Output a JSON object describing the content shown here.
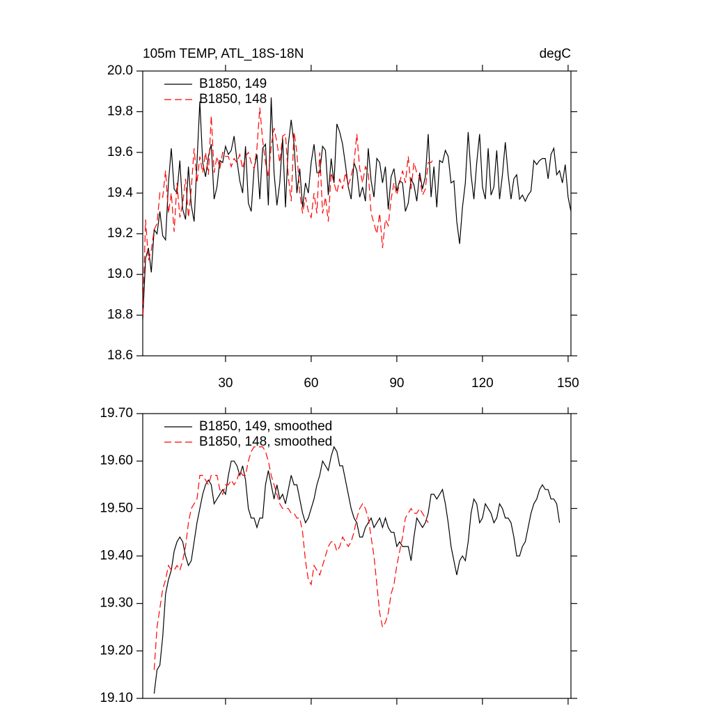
{
  "chart_data": [
    {
      "type": "line",
      "title": "105m TEMP, ATL_18S-18N",
      "right_title": "degC",
      "x": [
        1,
        2,
        3,
        4,
        5,
        6,
        7,
        8,
        9,
        10,
        11,
        12,
        13,
        14,
        15,
        16,
        17,
        18,
        19,
        20,
        21,
        22,
        23,
        24,
        25,
        26,
        27,
        28,
        29,
        30,
        31,
        32,
        33,
        34,
        35,
        36,
        37,
        38,
        39,
        40,
        41,
        42,
        43,
        44,
        45,
        46,
        47,
        48,
        49,
        50,
        51,
        52,
        53,
        54,
        55,
        56,
        57,
        58,
        59,
        60,
        61,
        62,
        63,
        64,
        65,
        66,
        67,
        68,
        69,
        70,
        71,
        72,
        73,
        74,
        75,
        76,
        77,
        78,
        79,
        80,
        81,
        82,
        83,
        84,
        85,
        86,
        87,
        88,
        89,
        90,
        91,
        92,
        93,
        94,
        95,
        96,
        97,
        98,
        99,
        100,
        101,
        102,
        103,
        104,
        105,
        106,
        107,
        108,
        109,
        110,
        111,
        112,
        113,
        114,
        115,
        116,
        117,
        118,
        119,
        120,
        121,
        122,
        123,
        124,
        125,
        126,
        127,
        128,
        129,
        130,
        131,
        132,
        133,
        134,
        135,
        136,
        137,
        138,
        139,
        140,
        141,
        142,
        143,
        144,
        145,
        146,
        147,
        148,
        149,
        150,
        151
      ],
      "series": [
        {
          "name": "B1850, 149",
          "color": "#000000",
          "line_style": "solid",
          "values": [
            18.78,
            19.08,
            19.13,
            19.01,
            19.22,
            19.2,
            19.31,
            19.19,
            19.17,
            19.45,
            19.62,
            19.42,
            19.4,
            19.56,
            19.32,
            19.27,
            19.53,
            19.34,
            19.26,
            19.55,
            19.85,
            19.55,
            19.48,
            19.58,
            19.64,
            19.37,
            19.43,
            19.56,
            19.55,
            19.63,
            19.59,
            19.61,
            19.68,
            19.56,
            19.46,
            19.4,
            19.63,
            19.35,
            19.31,
            19.52,
            19.59,
            19.37,
            19.62,
            19.64,
            19.34,
            19.87,
            19.5,
            19.34,
            19.45,
            19.67,
            19.33,
            19.64,
            19.76,
            19.64,
            19.4,
            19.52,
            19.33,
            19.45,
            19.4,
            19.55,
            19.64,
            19.5,
            19.5,
            19.63,
            19.61,
            19.39,
            19.57,
            19.45,
            19.74,
            19.7,
            19.64,
            19.54,
            19.43,
            19.37,
            19.55,
            19.51,
            19.38,
            19.43,
            19.36,
            19.62,
            19.46,
            19.38,
            19.57,
            19.55,
            19.45,
            19.53,
            19.32,
            19.48,
            19.52,
            19.41,
            19.46,
            19.45,
            19.31,
            19.35,
            19.47,
            19.44,
            19.36,
            19.5,
            19.42,
            19.48,
            19.69,
            19.38,
            19.53,
            19.33,
            19.56,
            19.55,
            19.61,
            19.58,
            19.45,
            19.46,
            19.26,
            19.15,
            19.33,
            19.45,
            19.7,
            19.49,
            19.37,
            19.55,
            19.69,
            19.43,
            19.37,
            19.62,
            19.39,
            19.43,
            19.61,
            19.37,
            19.49,
            19.65,
            19.49,
            19.37,
            19.47,
            19.49,
            19.37,
            19.39,
            19.36,
            19.39,
            19.41,
            19.56,
            19.54,
            19.56,
            19.57,
            19.57,
            19.47,
            19.59,
            19.62,
            19.49,
            19.51,
            19.45,
            19.54,
            19.38,
            19.31
          ]
        },
        {
          "name": "B1850, 148",
          "color": "#ff0000",
          "line_style": "dashed",
          "values": [
            18.8,
            19.27,
            19.07,
            19.12,
            19.22,
            19.25,
            19.4,
            19.38,
            19.51,
            19.3,
            19.4,
            19.21,
            19.45,
            19.28,
            19.35,
            19.47,
            19.28,
            19.42,
            19.62,
            19.45,
            19.58,
            19.5,
            19.6,
            19.49,
            19.78,
            19.5,
            19.58,
            19.52,
            19.6,
            19.58,
            19.58,
            19.53,
            19.57,
            19.55,
            19.59,
            19.52,
            19.58,
            19.6,
            19.55,
            19.52,
            19.62,
            19.82,
            19.66,
            19.55,
            19.48,
            19.63,
            19.72,
            19.65,
            19.55,
            19.68,
            19.69,
            19.48,
            19.36,
            19.7,
            19.6,
            19.4,
            19.3,
            19.38,
            19.31,
            19.28,
            19.4,
            19.3,
            19.6,
            19.3,
            19.38,
            19.26,
            19.5,
            19.45,
            19.4,
            19.47,
            19.42,
            19.5,
            19.44,
            19.48,
            19.55,
            19.69,
            19.52,
            19.45,
            19.53,
            19.5,
            19.3,
            19.25,
            19.2,
            19.3,
            19.13,
            19.27,
            19.24,
            19.37,
            19.45,
            19.39,
            19.45,
            19.51,
            19.45,
            19.58,
            19.42,
            19.55,
            19.5,
            19.48,
            19.39,
            19.42,
            19.55,
            19.55,
            19.57,
            null,
            null,
            null,
            null,
            null,
            null,
            null,
            null,
            null,
            null,
            null,
            null,
            null,
            null,
            null,
            null,
            null,
            null,
            null,
            null,
            null,
            null,
            null,
            null,
            null,
            null,
            null,
            null,
            null,
            null,
            null,
            null,
            null,
            null,
            null,
            null,
            null,
            null,
            null,
            null,
            null,
            null,
            null,
            null,
            null,
            null,
            null,
            null
          ]
        }
      ],
      "xlim": [
        1,
        151
      ],
      "xticks": [
        30,
        60,
        90,
        120,
        150
      ],
      "xticklabels": true,
      "ylim": [
        18.6,
        20.0
      ],
      "yticks": [
        18.6,
        18.8,
        {
          "value": 19.0,
          "label": "19.0"
        },
        19.2,
        19.4,
        19.6,
        19.8,
        {
          "value": 20.0,
          "label": "20.0"
        }
      ],
      "legend": "top-left"
    },
    {
      "type": "line",
      "x": [
        1,
        2,
        3,
        4,
        5,
        6,
        7,
        8,
        9,
        10,
        11,
        12,
        13,
        14,
        15,
        16,
        17,
        18,
        19,
        20,
        21,
        22,
        23,
        24,
        25,
        26,
        27,
        28,
        29,
        30,
        31,
        32,
        33,
        34,
        35,
        36,
        37,
        38,
        39,
        40,
        41,
        42,
        43,
        44,
        45,
        46,
        47,
        48,
        49,
        50,
        51,
        52,
        53,
        54,
        55,
        56,
        57,
        58,
        59,
        60,
        61,
        62,
        63,
        64,
        65,
        66,
        67,
        68,
        69,
        70,
        71,
        72,
        73,
        74,
        75,
        76,
        77,
        78,
        79,
        80,
        81,
        82,
        83,
        84,
        85,
        86,
        87,
        88,
        89,
        90,
        91,
        92,
        93,
        94,
        95,
        96,
        97,
        98,
        99,
        100,
        101,
        102,
        103,
        104,
        105,
        106,
        107,
        108,
        109,
        110,
        111,
        112,
        113,
        114,
        115,
        116,
        117,
        118,
        119,
        120,
        121,
        122,
        123,
        124,
        125,
        126,
        127,
        128,
        129,
        130,
        131,
        132,
        133,
        134,
        135,
        136,
        137,
        138,
        139,
        140,
        141,
        142,
        143,
        144,
        145,
        146,
        147,
        148,
        149,
        150,
        151
      ],
      "series": [
        {
          "name": "B1850, 149, smoothed",
          "color": "#000000",
          "line_style": "solid",
          "values": [
            null,
            null,
            null,
            null,
            19.11,
            19.16,
            19.17,
            19.23,
            19.32,
            19.35,
            19.37,
            19.41,
            19.43,
            19.44,
            19.43,
            19.4,
            19.38,
            19.39,
            19.43,
            19.47,
            19.5,
            19.53,
            19.55,
            19.56,
            19.55,
            19.51,
            19.52,
            19.53,
            19.54,
            19.53,
            19.57,
            19.6,
            19.6,
            19.59,
            19.57,
            19.59,
            19.56,
            19.5,
            19.48,
            19.48,
            19.46,
            19.48,
            19.48,
            19.55,
            19.58,
            19.55,
            19.52,
            19.55,
            19.52,
            19.53,
            19.51,
            19.54,
            19.57,
            19.55,
            19.55,
            19.52,
            19.49,
            19.47,
            19.48,
            19.5,
            19.52,
            19.55,
            19.57,
            19.6,
            19.59,
            19.58,
            19.61,
            19.63,
            19.62,
            19.59,
            19.59,
            19.56,
            19.53,
            19.5,
            19.48,
            19.47,
            19.44,
            19.44,
            19.46,
            19.47,
            19.48,
            19.46,
            19.47,
            19.48,
            19.46,
            19.48,
            19.46,
            19.45,
            19.45,
            19.42,
            19.43,
            19.42,
            19.42,
            19.42,
            19.39,
            19.44,
            19.48,
            19.47,
            19.46,
            19.47,
            19.49,
            19.53,
            19.53,
            19.52,
            19.53,
            19.54,
            19.51,
            19.47,
            19.42,
            19.39,
            19.36,
            19.39,
            19.4,
            19.39,
            19.43,
            19.49,
            19.52,
            19.51,
            19.47,
            19.48,
            19.51,
            19.5,
            19.49,
            19.47,
            19.48,
            19.51,
            19.5,
            19.48,
            19.48,
            19.47,
            19.44,
            19.4,
            19.4,
            19.42,
            19.43,
            19.46,
            19.49,
            19.51,
            19.52,
            19.54,
            19.55,
            19.54,
            19.54,
            19.52,
            19.52,
            19.51,
            19.47,
            null,
            null,
            null,
            null
          ]
        },
        {
          "name": "B1850, 148, smoothed",
          "color": "#ff0000",
          "line_style": "dashed",
          "values": [
            null,
            null,
            null,
            null,
            19.16,
            19.25,
            19.29,
            19.33,
            19.35,
            19.38,
            19.37,
            19.37,
            19.38,
            19.37,
            19.39,
            19.42,
            19.47,
            19.5,
            19.51,
            19.52,
            19.57,
            19.57,
            19.56,
            19.55,
            19.57,
            19.57,
            19.57,
            19.54,
            19.53,
            19.55,
            19.55,
            19.56,
            19.55,
            19.56,
            19.58,
            19.57,
            19.57,
            19.6,
            19.62,
            19.63,
            19.63,
            19.63,
            19.63,
            19.62,
            19.6,
            19.57,
            19.55,
            19.53,
            19.51,
            19.5,
            19.5,
            19.5,
            19.49,
            19.49,
            19.48,
            19.48,
            19.45,
            19.39,
            19.35,
            19.34,
            19.38,
            19.37,
            19.36,
            19.38,
            19.4,
            19.42,
            19.43,
            19.43,
            19.41,
            19.42,
            19.44,
            19.43,
            19.42,
            19.43,
            19.45,
            19.48,
            19.5,
            19.51,
            19.5,
            19.48,
            19.44,
            19.4,
            19.34,
            19.28,
            19.25,
            19.26,
            19.28,
            19.32,
            19.34,
            19.38,
            19.41,
            19.44,
            19.48,
            19.49,
            19.5,
            19.49,
            19.49,
            19.5,
            19.49,
            19.48,
            19.47,
            null,
            null,
            null,
            null,
            null,
            null,
            null,
            null,
            null,
            null,
            null,
            null,
            null,
            null,
            null,
            null,
            null,
            null,
            null,
            null,
            null,
            null,
            null,
            null,
            null,
            null,
            null,
            null,
            null,
            null,
            null,
            null,
            null,
            null,
            null,
            null,
            null,
            null,
            null,
            null,
            null,
            null,
            null,
            null,
            null,
            null,
            null,
            null,
            null,
            null
          ]
        }
      ],
      "xlim": [
        1,
        151
      ],
      "xticks": [
        30,
        60,
        90,
        120,
        150
      ],
      "xticklabels": false,
      "ylim": [
        19.1,
        19.7
      ],
      "yticks": [
        {
          "value": 19.1,
          "label": "19.10"
        },
        {
          "value": 19.2,
          "label": "19.20"
        },
        {
          "value": 19.3,
          "label": "19.30"
        },
        {
          "value": 19.4,
          "label": "19.40"
        },
        {
          "value": 19.5,
          "label": "19.50"
        },
        {
          "value": 19.6,
          "label": "19.60"
        },
        {
          "value": 19.7,
          "label": "19.70"
        }
      ],
      "legend": "top-left"
    }
  ]
}
